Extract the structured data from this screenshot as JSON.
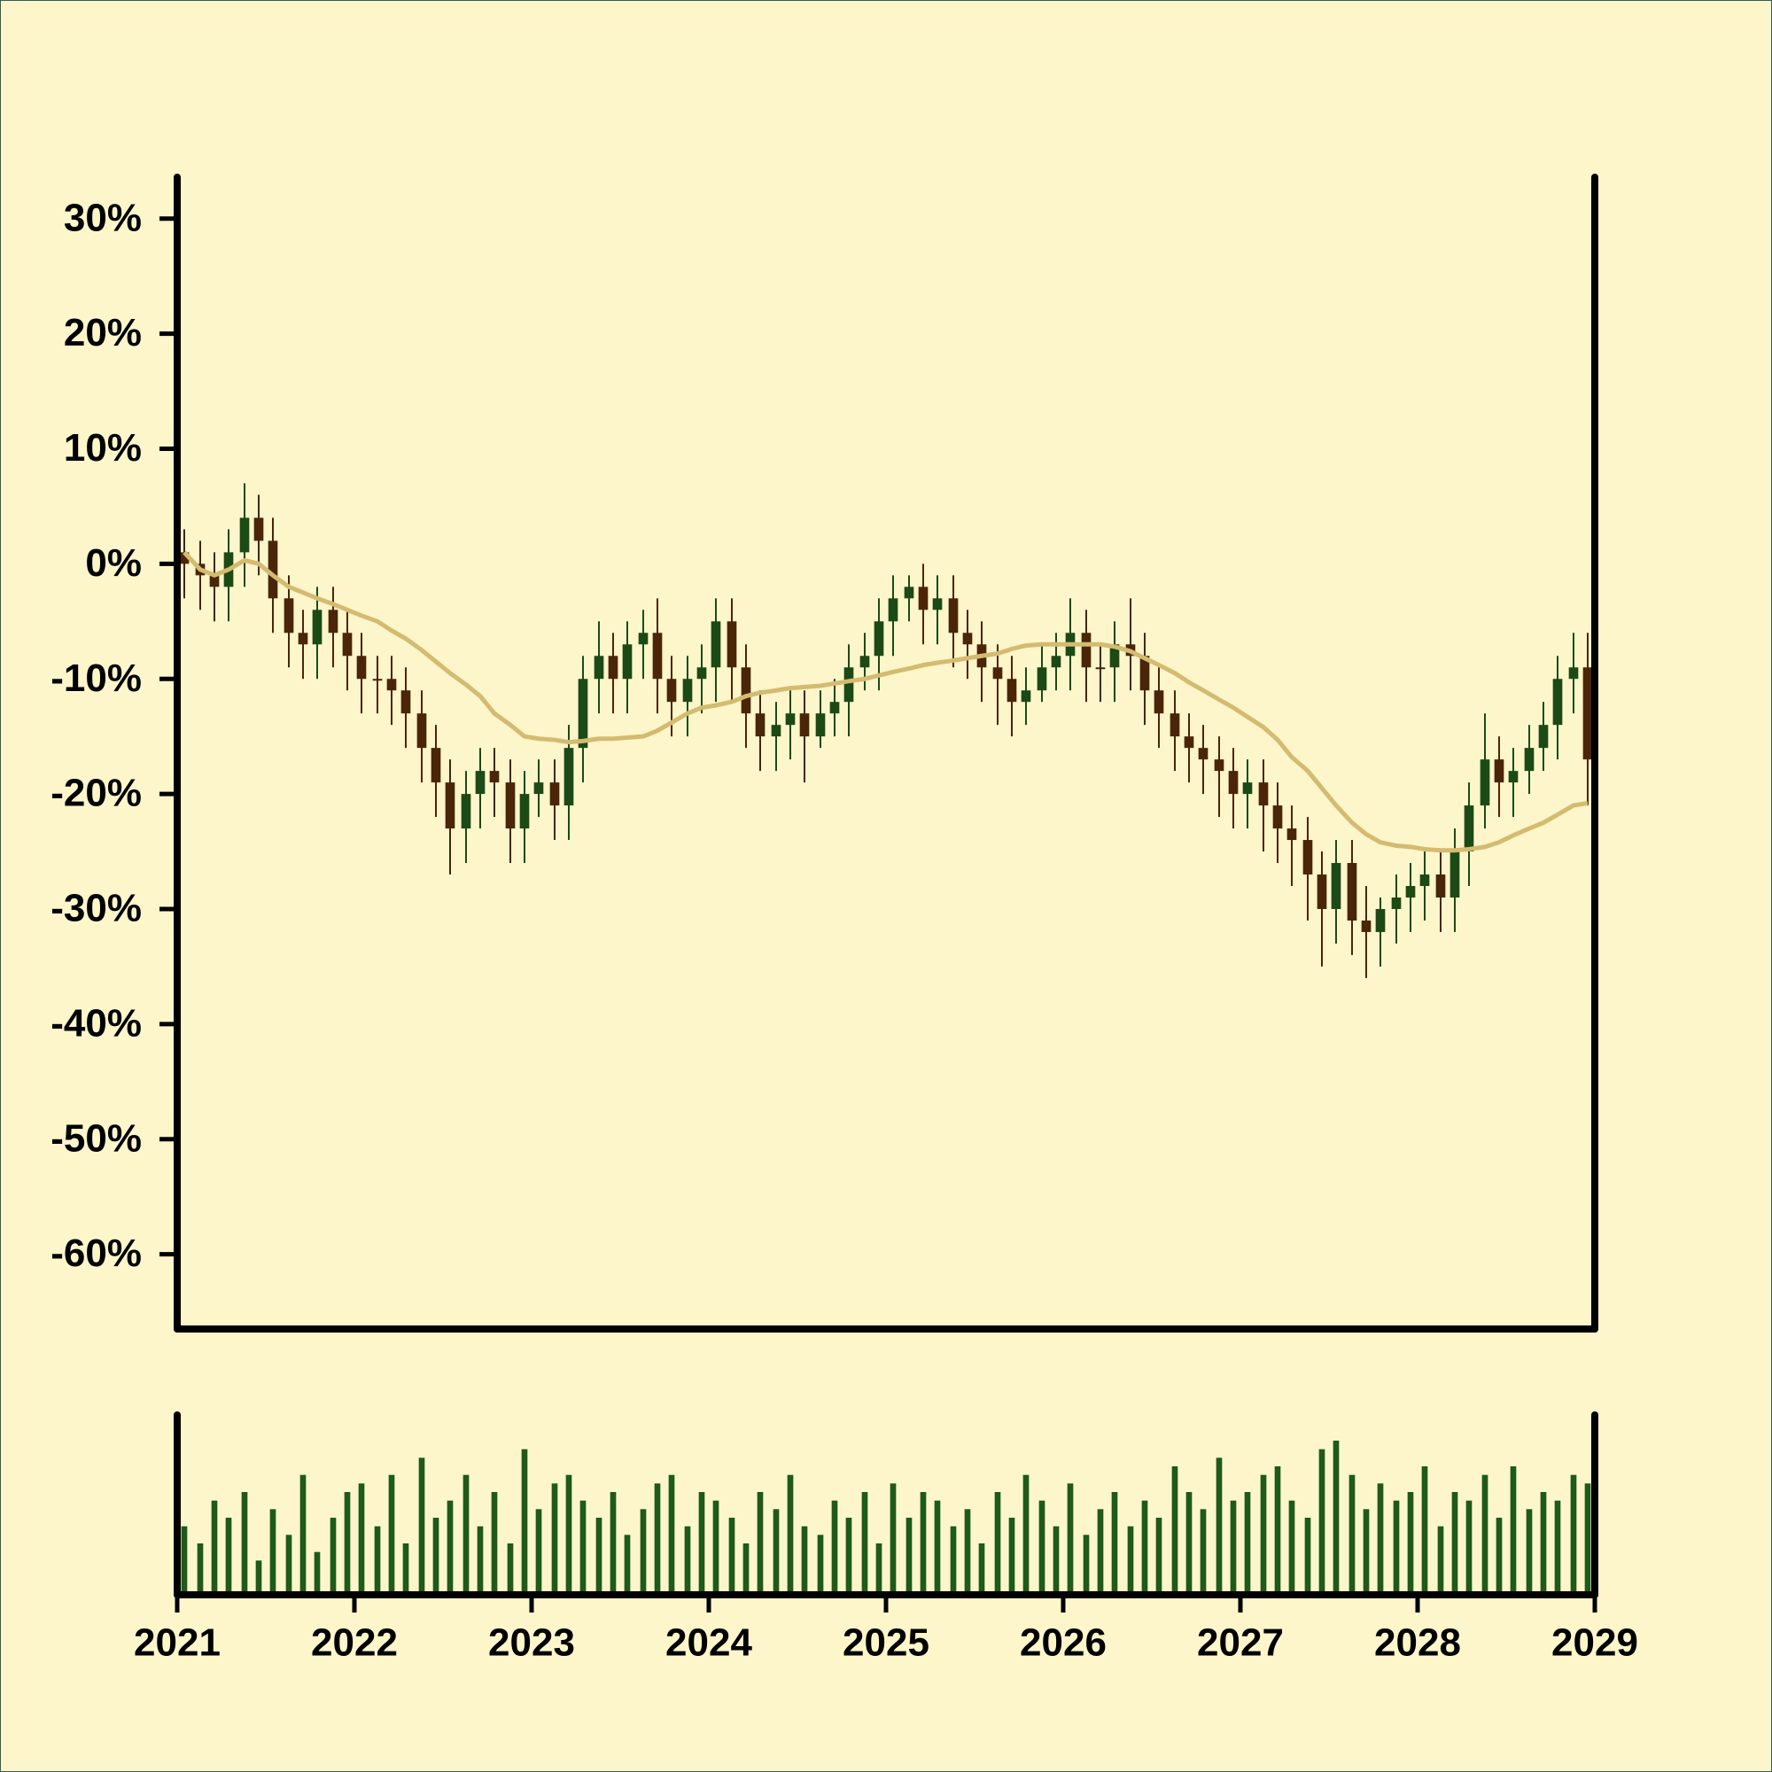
{
  "chart_data": {
    "type": "candlestick",
    "x": [
      2021.04,
      2021.13,
      2021.21,
      2021.29,
      2021.38,
      2021.46,
      2021.54,
      2021.63,
      2021.71,
      2021.79,
      2021.88,
      2021.96,
      2022.04,
      2022.13,
      2022.21,
      2022.29,
      2022.38,
      2022.46,
      2022.54,
      2022.63,
      2022.71,
      2022.79,
      2022.88,
      2022.96,
      2023.04,
      2023.13,
      2023.21,
      2023.29,
      2023.38,
      2023.46,
      2023.54,
      2023.63,
      2023.71,
      2023.79,
      2023.88,
      2023.96,
      2024.04,
      2024.13,
      2024.21,
      2024.29,
      2024.38,
      2024.46,
      2024.54,
      2024.63,
      2024.71,
      2024.79,
      2024.88,
      2024.96,
      2025.04,
      2025.13,
      2025.21,
      2025.29,
      2025.38,
      2025.46,
      2025.54,
      2025.63,
      2025.71,
      2025.79,
      2025.88,
      2025.96,
      2026.04,
      2026.13,
      2026.21,
      2026.29,
      2026.38,
      2026.46,
      2026.54,
      2026.63,
      2026.71,
      2026.79,
      2026.88,
      2026.96,
      2027.04,
      2027.13,
      2027.21,
      2027.29,
      2027.38,
      2027.46,
      2027.54,
      2027.63,
      2027.71,
      2027.79,
      2027.88,
      2027.96,
      2028.04,
      2028.13,
      2028.21,
      2028.29,
      2028.38,
      2028.46,
      2028.54,
      2028.63,
      2028.71,
      2028.79,
      2028.88,
      2028.96
    ],
    "open": [
      1,
      0,
      -1,
      -2,
      1,
      4,
      2,
      -3,
      -6,
      -7,
      -4,
      -6,
      -8,
      -10,
      -10,
      -11,
      -13,
      -16,
      -19,
      -23,
      -20,
      -18,
      -19,
      -23,
      -20,
      -19,
      -21,
      -16,
      -10,
      -8,
      -10,
      -7,
      -6,
      -10,
      -12,
      -10,
      -9,
      -5,
      -9,
      -13,
      -15,
      -14,
      -13,
      -15,
      -13,
      -12,
      -9,
      -8,
      -5,
      -3,
      -2,
      -4,
      -3,
      -6,
      -7,
      -9,
      -10,
      -12,
      -11,
      -9,
      -8,
      -6,
      -9,
      -9,
      -7,
      -8,
      -11,
      -13,
      -15,
      -16,
      -17,
      -18,
      -20,
      -19,
      -21,
      -23,
      -24,
      -27,
      -30,
      -26,
      -31,
      -32,
      -30,
      -29,
      -28,
      -27,
      -29,
      -25,
      -21,
      -17,
      -19,
      -18,
      -16,
      -14,
      -10,
      -9
    ],
    "high": [
      3,
      2,
      1,
      3,
      7,
      6,
      4,
      -1,
      -4,
      -2,
      -2,
      -4,
      -6,
      -8,
      -8,
      -9,
      -11,
      -14,
      -17,
      -18,
      -16,
      -16,
      -17,
      -18,
      -17,
      -17,
      -14,
      -8,
      -5,
      -6,
      -5,
      -4,
      -3,
      -8,
      -8,
      -7,
      -3,
      -3,
      -7,
      -11,
      -12,
      -11,
      -11,
      -11,
      -10,
      -7,
      -6,
      -3,
      -1,
      -1,
      0,
      -1,
      -1,
      -4,
      -5,
      -7,
      -8,
      -9,
      -7,
      -6,
      -3,
      -4,
      -7,
      -5,
      -3,
      -6,
      -9,
      -11,
      -13,
      -14,
      -15,
      -16,
      -17,
      -17,
      -19,
      -21,
      -22,
      -25,
      -24,
      -24,
      -28,
      -29,
      -27,
      -26,
      -25,
      -25,
      -23,
      -19,
      -13,
      -15,
      -16,
      -14,
      -12,
      -8,
      -6,
      -6
    ],
    "low": [
      -3,
      -4,
      -5,
      -5,
      -2,
      -1,
      -6,
      -9,
      -10,
      -10,
      -9,
      -11,
      -13,
      -13,
      -14,
      -16,
      -19,
      -22,
      -27,
      -26,
      -23,
      -22,
      -26,
      -26,
      -22,
      -24,
      -24,
      -19,
      -13,
      -13,
      -13,
      -10,
      -13,
      -15,
      -15,
      -13,
      -12,
      -12,
      -16,
      -18,
      -18,
      -17,
      -19,
      -16,
      -15,
      -15,
      -11,
      -11,
      -8,
      -5,
      -7,
      -7,
      -9,
      -10,
      -12,
      -14,
      -15,
      -14,
      -12,
      -11,
      -11,
      -12,
      -12,
      -12,
      -11,
      -14,
      -16,
      -18,
      -19,
      -20,
      -22,
      -23,
      -23,
      -25,
      -26,
      -28,
      -31,
      -35,
      -33,
      -34,
      -36,
      -35,
      -33,
      -32,
      -31,
      -32,
      -32,
      -28,
      -23,
      -22,
      -22,
      -20,
      -18,
      -17,
      -13,
      -21
    ],
    "close": [
      0,
      -1,
      -2,
      1,
      4,
      2,
      -3,
      -6,
      -7,
      -4,
      -6,
      -8,
      -10,
      -10,
      -11,
      -13,
      -16,
      -19,
      -23,
      -20,
      -18,
      -19,
      -23,
      -20,
      -19,
      -21,
      -16,
      -10,
      -8,
      -10,
      -7,
      -6,
      -10,
      -12,
      -10,
      -9,
      -5,
      -9,
      -13,
      -15,
      -14,
      -13,
      -15,
      -13,
      -12,
      -9,
      -8,
      -5,
      -3,
      -2,
      -4,
      -3,
      -6,
      -7,
      -9,
      -10,
      -12,
      -11,
      -9,
      -8,
      -6,
      -9,
      -9,
      -7,
      -8,
      -11,
      -13,
      -15,
      -16,
      -17,
      -18,
      -20,
      -19,
      -21,
      -23,
      -24,
      -27,
      -30,
      -26,
      -31,
      -32,
      -30,
      -29,
      -28,
      -27,
      -29,
      -25,
      -21,
      -17,
      -19,
      -18,
      -16,
      -14,
      -10,
      -9,
      -17
    ],
    "up_color": "#1c4a16",
    "down_color": "#4a2508",
    "moving_average": {
      "color": "#d4bb70",
      "values": [
        1,
        -0.5,
        -1,
        -0.5,
        0.3,
        0,
        -1,
        -2,
        -2.5,
        -3,
        -3.5,
        -4,
        -4.5,
        -5,
        -5.8,
        -6.5,
        -7.5,
        -8.5,
        -9.5,
        -10.5,
        -11.5,
        -13,
        -14,
        -15,
        -15.2,
        -15.3,
        -15.5,
        -15.4,
        -15.2,
        -15.2,
        -15.1,
        -15,
        -14.5,
        -13.8,
        -13,
        -12.5,
        -12.3,
        -12,
        -11.5,
        -11.2,
        -11,
        -10.8,
        -10.7,
        -10.6,
        -10.4,
        -10.2,
        -10,
        -9.7,
        -9.4,
        -9.1,
        -8.8,
        -8.6,
        -8.4,
        -8.2,
        -8,
        -7.8,
        -7.4,
        -7.1,
        -7,
        -7,
        -7,
        -7,
        -7,
        -7.2,
        -7.6,
        -8.2,
        -8.8,
        -9.5,
        -10.3,
        -11,
        -11.8,
        -12.5,
        -13.3,
        -14.2,
        -15.3,
        -16.8,
        -18,
        -19.5,
        -21,
        -22.5,
        -23.5,
        -24.2,
        -24.5,
        -24.6,
        -24.8,
        -24.9,
        -24.9,
        -24.8,
        -24.6,
        -24.2,
        -23.6,
        -23,
        -22.5,
        -21.8,
        -21,
        -20.8
      ]
    },
    "volume": {
      "color": "#1e5a1a",
      "ylim": [
        0,
        105
      ],
      "values": [
        40,
        30,
        55,
        45,
        60,
        20,
        50,
        35,
        70,
        25,
        45,
        60,
        65,
        40,
        70,
        30,
        80,
        45,
        55,
        70,
        40,
        60,
        30,
        85,
        50,
        65,
        70,
        55,
        45,
        60,
        35,
        50,
        65,
        70,
        40,
        60,
        55,
        45,
        30,
        60,
        50,
        70,
        40,
        35,
        55,
        45,
        60,
        30,
        65,
        45,
        60,
        55,
        40,
        50,
        30,
        60,
        45,
        70,
        55,
        40,
        65,
        35,
        50,
        60,
        40,
        55,
        45,
        75,
        60,
        50,
        80,
        55,
        60,
        70,
        75,
        55,
        45,
        85,
        90,
        70,
        50,
        65,
        55,
        60,
        75,
        40,
        60,
        55,
        70,
        45,
        75,
        50,
        60,
        55,
        70,
        65
      ]
    },
    "xlim": [
      2021,
      2029
    ],
    "xticks": [
      2021,
      2022,
      2023,
      2024,
      2025,
      2026,
      2027,
      2028,
      2029
    ],
    "ylim": [
      -66.5,
      33.6
    ],
    "yticks": [
      {
        "value": 30,
        "label": "30%"
      },
      {
        "value": 20,
        "label": "20%"
      },
      {
        "value": 10,
        "label": "10%"
      },
      {
        "value": 0,
        "label": "0%"
      },
      {
        "value": -10,
        "label": "-10%"
      },
      {
        "value": -20,
        "label": "-20%"
      },
      {
        "value": -30,
        "label": "-30%"
      },
      {
        "value": -40,
        "label": "-40%"
      },
      {
        "value": -50,
        "label": "-50%"
      },
      {
        "value": -60,
        "label": "-60%"
      }
    ]
  }
}
